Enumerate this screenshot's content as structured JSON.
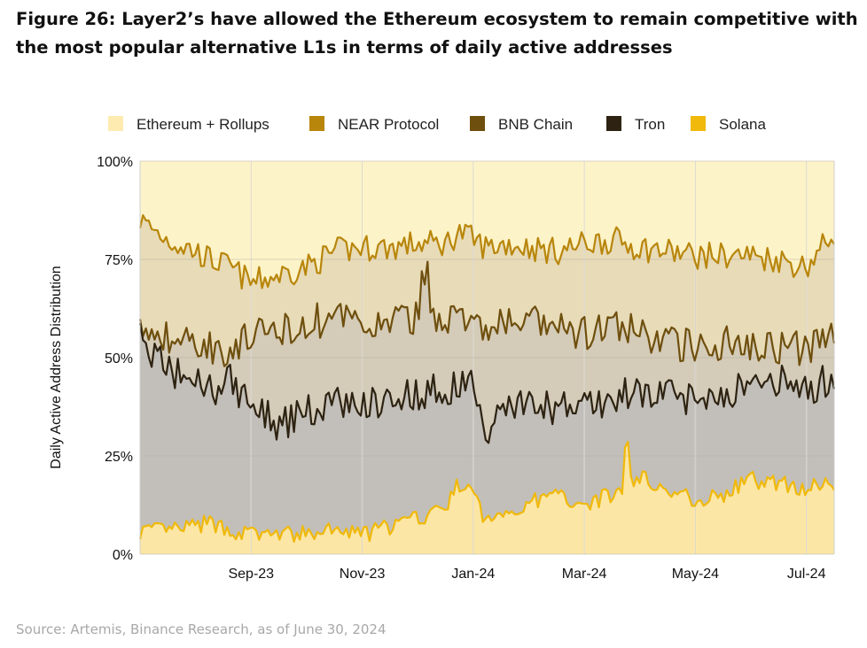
{
  "title": "Figure 26: Layer2’s have allowed the Ethereum ecosystem to remain competitive with the most popular alternative L1s in terms of daily active addresses",
  "source": "Source: Artemis, Binance Research, as of June 30, 2024",
  "chart_data": {
    "type": "area",
    "stacked": true,
    "normalized": true,
    "ylabel": "Daily Active Address Distribution",
    "ylim": [
      0,
      100
    ],
    "y_ticks": [
      "0%",
      "25%",
      "50%",
      "75%",
      "100%"
    ],
    "y_tick_values": [
      0,
      25,
      50,
      75,
      100
    ],
    "x_ticks": [
      "Sep-23",
      "Nov-23",
      "Jan-24",
      "Mar-24",
      "May-24",
      "Jul-24"
    ],
    "x_tick_positions": [
      0.16,
      0.32,
      0.48,
      0.64,
      0.8,
      0.96
    ],
    "grid": true,
    "legend_position": "top",
    "series": [
      {
        "name": "Ethereum + Rollups",
        "fill": "#fdf3c8",
        "line": "#fdf3c8"
      },
      {
        "name": "NEAR Protocol",
        "fill": "#e8dbb8",
        "line": "#b8860b"
      },
      {
        "name": "BNB Chain",
        "fill": "#d4cbb8",
        "line": "#6e4f0e"
      },
      {
        "name": "Tron",
        "fill": "#c2bfba",
        "line": "#2e2312"
      },
      {
        "name": "Solana",
        "fill": "#fbe6a5",
        "line": "#f0b90b"
      }
    ],
    "cumulative_anchors": {
      "t": [
        0,
        0.04,
        0.08,
        0.1,
        0.13,
        0.16,
        0.2,
        0.24,
        0.28,
        0.32,
        0.36,
        0.4,
        0.44,
        0.46,
        0.48,
        0.5,
        0.53,
        0.56,
        0.6,
        0.64,
        0.68,
        0.72,
        0.76,
        0.8,
        0.84,
        0.88,
        0.92,
        0.96,
        1.0
      ],
      "Solana": [
        6,
        6,
        7,
        8,
        6,
        5,
        5,
        5,
        6,
        5,
        7,
        9,
        12,
        18,
        15,
        8,
        11,
        13,
        15,
        13,
        15,
        20,
        16,
        14,
        15,
        19,
        18,
        17,
        18
      ],
      "Tron": [
        55,
        47,
        44,
        42,
        44,
        38,
        33,
        36,
        39,
        38,
        40,
        41,
        42,
        43,
        44,
        32,
        39,
        38,
        37,
        38,
        39,
        42,
        40,
        40,
        41,
        43,
        44,
        42,
        45
      ],
      "BNB Chain": [
        56,
        55,
        54,
        53,
        52,
        55,
        57,
        59,
        60,
        58,
        59,
        60,
        61,
        60,
        58,
        57,
        59,
        59,
        57,
        56,
        58,
        56,
        54,
        53,
        54,
        54,
        53,
        52,
        56
      ],
      "NEAR Protocol": [
        85,
        80,
        77,
        75,
        73,
        69,
        71,
        73,
        77,
        78,
        78,
        79,
        79,
        82,
        80,
        78,
        79,
        78,
        77,
        79,
        80,
        78,
        77,
        76,
        76,
        76,
        75,
        73,
        82
      ]
    }
  }
}
